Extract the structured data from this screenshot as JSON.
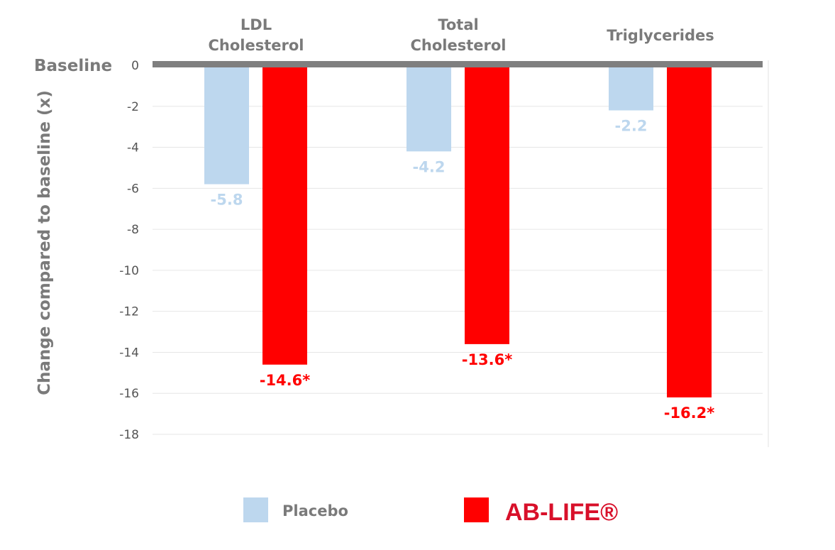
{
  "chart_data": {
    "type": "bar",
    "ylabel": "Change compared to baseline (x)",
    "baseline_label": "Baseline",
    "ylim": [
      -18,
      0
    ],
    "yticks": [
      0,
      -2,
      -4,
      -6,
      -8,
      -10,
      -12,
      -14,
      -16,
      -18
    ],
    "grid": true,
    "legend_position": "bottom",
    "categories": [
      [
        "LDL",
        "Cholesterol"
      ],
      [
        "Total",
        "Cholesterol"
      ],
      [
        "Triglycerides"
      ]
    ],
    "series": [
      {
        "name": "Placebo",
        "color": "#bdd7ee",
        "values": [
          -5.8,
          -4.2,
          -2.2
        ],
        "labels": [
          "-5.8",
          "-4.2",
          "-2.2"
        ]
      },
      {
        "name": "AB-LIFE®",
        "color": "#ff0000",
        "values": [
          -14.6,
          -13.6,
          -16.2
        ],
        "labels": [
          "-14.6*",
          "-13.6*",
          "-16.2*"
        ]
      }
    ]
  }
}
